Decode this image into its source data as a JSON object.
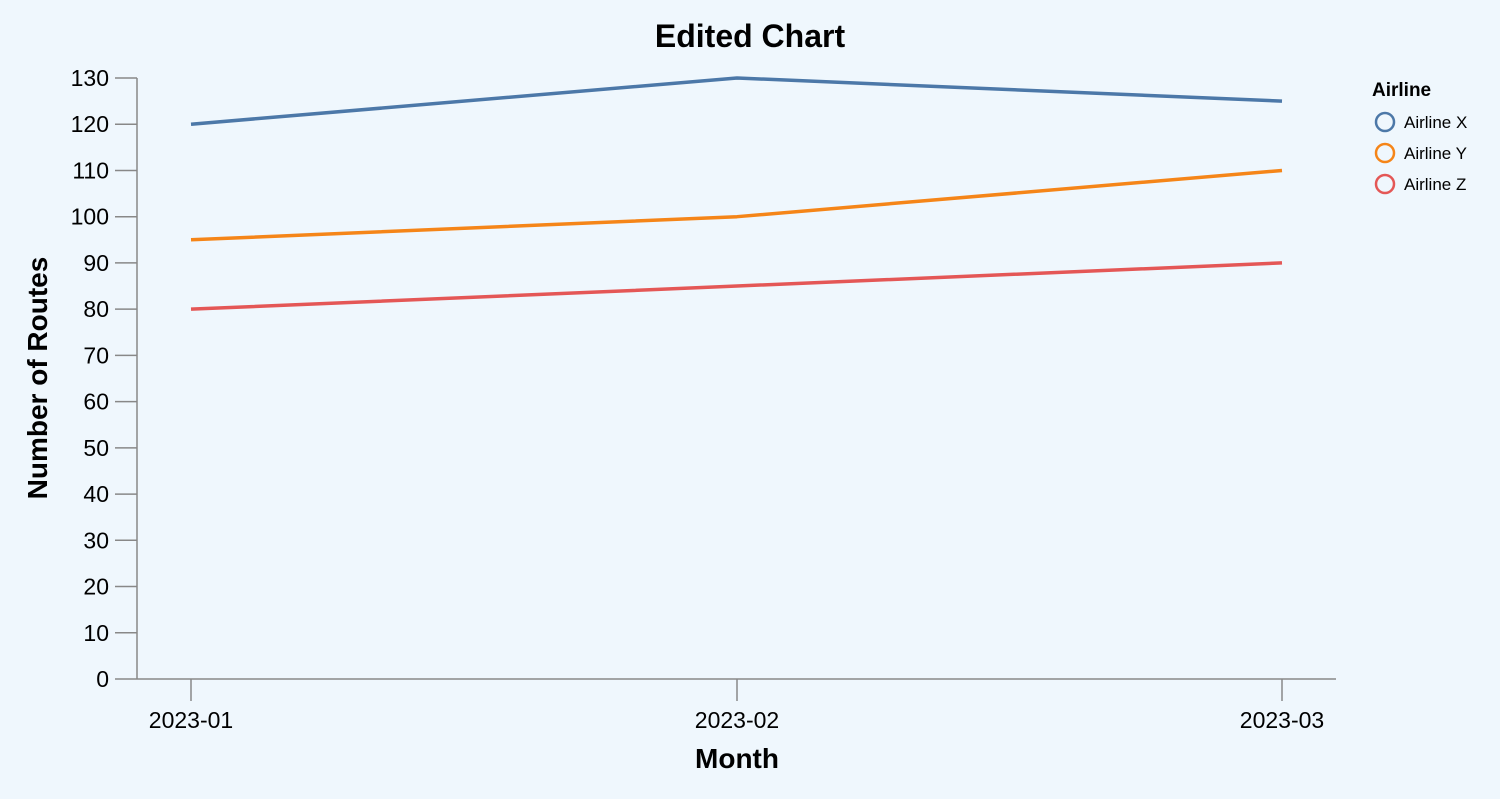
{
  "chart_data": {
    "type": "line",
    "title": "Edited Chart",
    "xlabel": "Month",
    "ylabel": "Number of Routes",
    "categories": [
      "2023-01",
      "2023-02",
      "2023-03"
    ],
    "ylim": [
      0,
      130
    ],
    "yticks": [
      0,
      10,
      20,
      30,
      40,
      50,
      60,
      70,
      80,
      90,
      100,
      110,
      120,
      130
    ],
    "grid": false,
    "legend": {
      "title": "Airline",
      "placement": "top-right"
    },
    "series": [
      {
        "name": "Airline X",
        "color": "#4c78a8",
        "values": [
          120,
          130,
          125
        ]
      },
      {
        "name": "Airline Y",
        "color": "#f58518",
        "values": [
          95,
          100,
          110
        ]
      },
      {
        "name": "Airline Z",
        "color": "#e45756",
        "values": [
          80,
          85,
          90
        ]
      }
    ]
  }
}
